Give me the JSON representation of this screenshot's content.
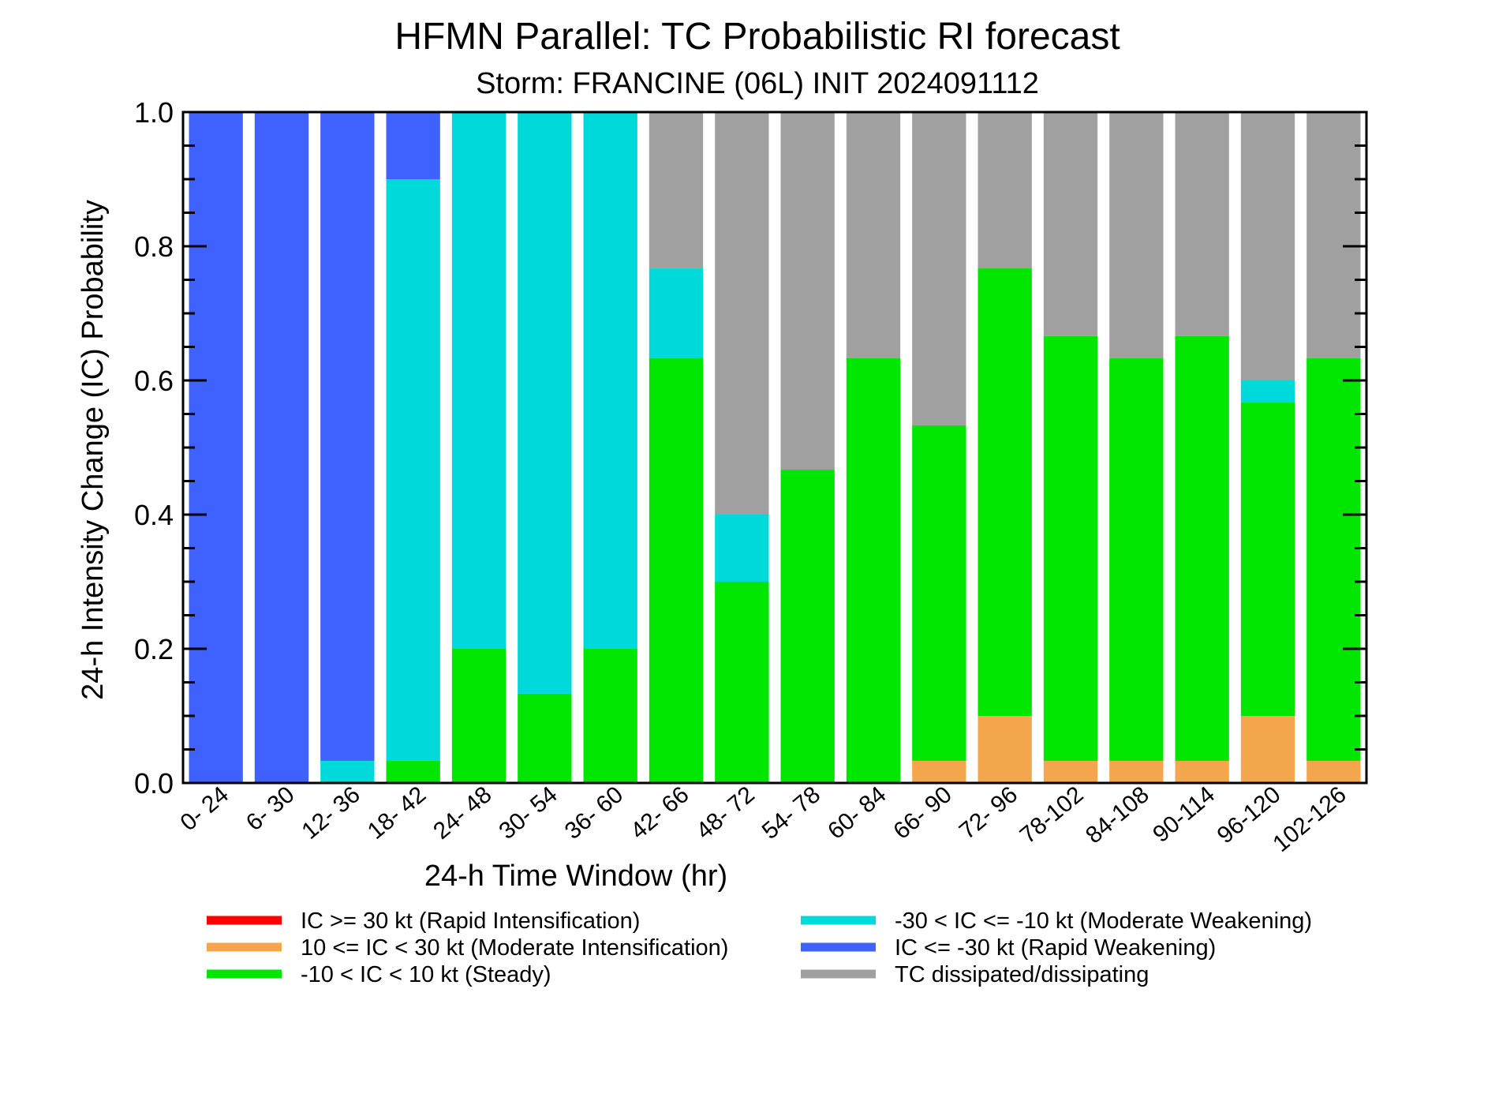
{
  "chart_data": {
    "type": "bar",
    "stacked": true,
    "title": "HFMN Parallel: TC Probabilistic RI forecast",
    "subtitle": "Storm: FRANCINE (06L) INIT 2024091112",
    "xlabel": "24-h Time Window (hr)",
    "ylabel": "24-h Intensity Change (IC) Probability",
    "ylim": [
      0,
      1.0
    ],
    "yticks": [
      "0.0",
      "0.2",
      "0.4",
      "0.6",
      "0.8",
      "1.0"
    ],
    "grid": false,
    "legend_position": "bottom",
    "categories": [
      "0- 24",
      "6- 30",
      "12- 36",
      "18- 42",
      "24- 48",
      "30- 54",
      "36- 60",
      "42- 66",
      "48- 72",
      "54- 78",
      "60- 84",
      "66- 90",
      "72- 96",
      "78-102",
      "84-108",
      "90-114",
      "96-120",
      "102-126"
    ],
    "series": [
      {
        "name": "IC >= 30 kt (Rapid Intensification)",
        "color": "#ff0000",
        "values": [
          0,
          0,
          0,
          0,
          0,
          0,
          0,
          0,
          0,
          0,
          0,
          0,
          0,
          0,
          0,
          0,
          0,
          0
        ]
      },
      {
        "name": "10 <= IC < 30 kt (Moderate Intensification)",
        "color": "#f4a64c",
        "values": [
          0,
          0,
          0,
          0,
          0,
          0,
          0,
          0,
          0,
          0,
          0,
          0.033,
          0.1,
          0.033,
          0.033,
          0.033,
          0.1,
          0.033
        ]
      },
      {
        "name": "-10 < IC < 10 kt (Steady)",
        "color": "#00e600",
        "values": [
          0,
          0,
          0,
          0.033,
          0.2,
          0.133,
          0.2,
          0.633,
          0.3,
          0.467,
          0.633,
          0.5,
          0.667,
          0.633,
          0.6,
          0.633,
          0.467,
          0.6
        ]
      },
      {
        "name": "-30 < IC <= -10 kt (Moderate Weakening)",
        "color": "#00d9d9",
        "values": [
          0,
          0,
          0.033,
          0.867,
          0.8,
          0.867,
          0.8,
          0.134,
          0.1,
          0,
          0,
          0,
          0,
          0,
          0,
          0,
          0.033,
          0
        ]
      },
      {
        "name": "IC <= -30 kt (Rapid Weakening)",
        "color": "#3f62ff",
        "values": [
          1.0,
          1.0,
          0.967,
          0.1,
          0,
          0,
          0,
          0,
          0,
          0,
          0,
          0,
          0,
          0,
          0,
          0,
          0,
          0
        ]
      },
      {
        "name": "TC dissipated/dissipating",
        "color": "#a0a0a0",
        "values": [
          0,
          0,
          0,
          0,
          0,
          0,
          0,
          0.233,
          0.6,
          0.533,
          0.367,
          0.467,
          0.233,
          0.334,
          0.367,
          0.334,
          0.4,
          0.367
        ]
      }
    ]
  }
}
